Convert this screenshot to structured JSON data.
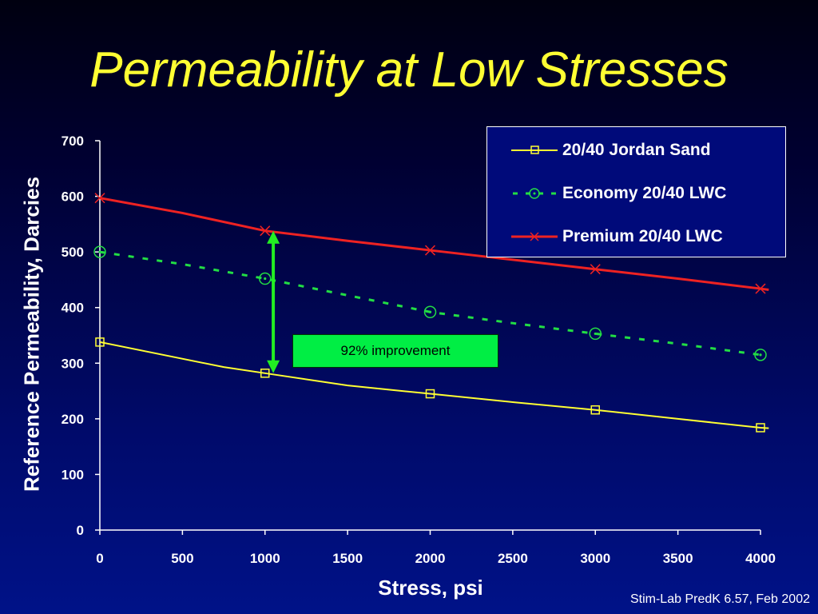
{
  "slide": {
    "title": "Permeability at Low Stresses",
    "footnote": "Stim-Lab PredK 6.57, Feb 2002",
    "callout": "92% improvement"
  },
  "chart_data": {
    "type": "line",
    "xlabel": "Stress, psi",
    "ylabel": "Reference Permeability, Darcies",
    "xlim": [
      0,
      4000
    ],
    "ylim": [
      0,
      700
    ],
    "x_ticks": [
      0,
      500,
      1000,
      1500,
      2000,
      2500,
      3000,
      3500,
      4000
    ],
    "y_ticks": [
      0,
      100,
      200,
      300,
      400,
      500,
      600,
      700
    ],
    "grid": false,
    "legend_position": "top-right",
    "series": [
      {
        "name": "20/40 Jordan Sand",
        "color": "#ffff33",
        "line_style": "solid",
        "marker": "square",
        "points": [
          [
            0,
            338
          ],
          [
            1000,
            282
          ],
          [
            2000,
            245
          ],
          [
            3000,
            216
          ],
          [
            4000,
            184
          ]
        ],
        "line": [
          [
            0,
            338
          ],
          [
            750,
            293
          ],
          [
            1000,
            282
          ],
          [
            1500,
            260
          ],
          [
            2000,
            245
          ],
          [
            2500,
            230
          ],
          [
            3000,
            216
          ],
          [
            3500,
            200
          ],
          [
            4000,
            184
          ],
          [
            4050,
            183
          ]
        ]
      },
      {
        "name": "Economy 20/40 LWC",
        "color": "#22dd44",
        "line_style": "dashed",
        "marker": "circle",
        "points": [
          [
            0,
            500
          ],
          [
            1000,
            452
          ],
          [
            2000,
            392
          ],
          [
            3000,
            353
          ],
          [
            4000,
            315
          ]
        ],
        "line": [
          [
            0,
            500
          ],
          [
            500,
            478
          ],
          [
            1000,
            452
          ],
          [
            1500,
            422
          ],
          [
            2000,
            392
          ],
          [
            2500,
            372
          ],
          [
            3000,
            353
          ],
          [
            3500,
            335
          ],
          [
            4000,
            315
          ]
        ]
      },
      {
        "name": "Premium 20/40 LWC",
        "color": "#ee2222",
        "line_style": "solid",
        "marker": "x",
        "points": [
          [
            0,
            597
          ],
          [
            1000,
            538
          ],
          [
            2000,
            503
          ],
          [
            3000,
            469
          ],
          [
            4000,
            434
          ]
        ],
        "line": [
          [
            0,
            597
          ],
          [
            500,
            570
          ],
          [
            1000,
            538
          ],
          [
            1500,
            520
          ],
          [
            2000,
            503
          ],
          [
            2500,
            486
          ],
          [
            3000,
            469
          ],
          [
            3500,
            452
          ],
          [
            4000,
            434
          ],
          [
            4050,
            432
          ]
        ]
      }
    ],
    "annotation": {
      "text": "92% improvement",
      "arrow_x": 1050,
      "arrow_from": 282,
      "arrow_to": 538,
      "color": "#22ee22"
    }
  }
}
